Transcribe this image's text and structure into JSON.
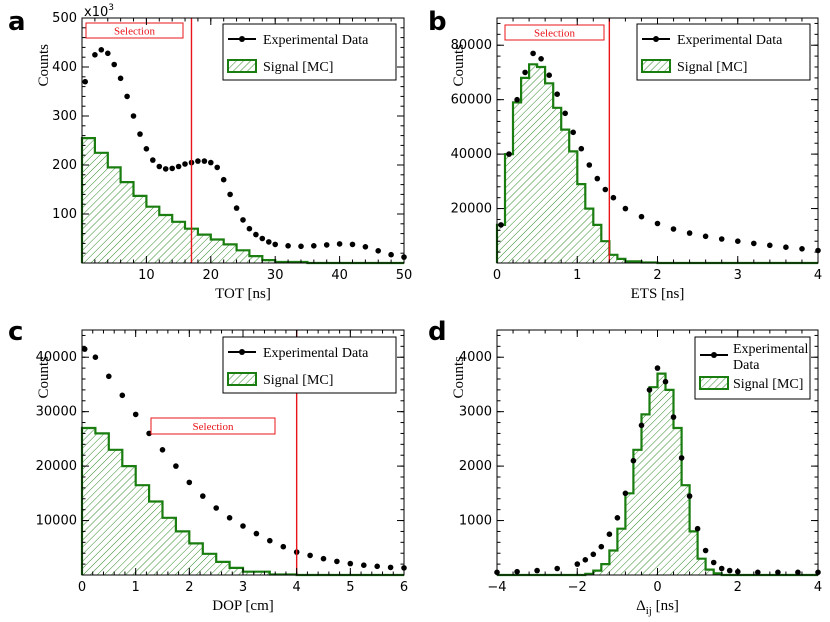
{
  "colors": {
    "data": "#000000",
    "mc": "#1a7d10",
    "selection": "#e8141a"
  },
  "chart_data": [
    {
      "panel": "a",
      "type": "scatter+histogram",
      "xlabel": "TOT [ns]",
      "ylabel": "Counts",
      "xlim": [
        0,
        50
      ],
      "ylim": [
        0,
        500
      ],
      "xticks": [
        10,
        20,
        30,
        40,
        50
      ],
      "xtick_labels": [
        "10",
        "20",
        "30",
        "40",
        "50"
      ],
      "yticks": [
        100,
        200,
        300,
        400,
        500
      ],
      "ytick_labels": [
        "100",
        "200",
        "300",
        "400",
        "500"
      ],
      "y_multiplier": "x10",
      "y_multiplier_exp": "3",
      "legend": {
        "data": "Experimental Data",
        "mc": "Signal [MC]"
      },
      "selection": {
        "label": "Selection",
        "x": 17,
        "from": 0,
        "to": 17
      },
      "series": [
        {
          "name": "Experimental Data",
          "x": [
            0.5,
            2,
            3,
            4,
            5,
            6,
            7,
            8,
            9,
            10,
            11,
            12,
            13,
            14,
            15,
            16,
            17,
            18,
            19,
            20,
            21,
            22,
            23,
            24,
            25,
            26,
            27,
            28,
            29,
            30,
            32,
            34,
            36,
            38,
            40,
            42,
            44,
            46,
            48,
            50
          ],
          "y": [
            370,
            425,
            435,
            428,
            405,
            377,
            340,
            300,
            263,
            233,
            210,
            197,
            192,
            193,
            197,
            202,
            205,
            208,
            208,
            205,
            195,
            170,
            140,
            112,
            88,
            70,
            58,
            50,
            43,
            38,
            35,
            34,
            35,
            37,
            39,
            38,
            33,
            25,
            17,
            12
          ]
        },
        {
          "name": "Signal [MC]",
          "x": [
            0,
            2,
            4,
            6,
            8,
            10,
            12,
            14,
            16,
            18,
            20,
            22,
            24,
            26,
            28,
            30,
            35,
            40,
            50
          ],
          "y": [
            255,
            225,
            195,
            165,
            137,
            115,
            98,
            84,
            70,
            58,
            48,
            38,
            26,
            14,
            6,
            2,
            0,
            0,
            0
          ]
        }
      ]
    },
    {
      "panel": "b",
      "type": "scatter+histogram",
      "xlabel": "ETS [ns]",
      "ylabel": "Counts",
      "xlim": [
        0,
        4
      ],
      "ylim": [
        0,
        90000
      ],
      "xticks": [
        0,
        1,
        2,
        3,
        4
      ],
      "xtick_labels": [
        "0",
        "1",
        "2",
        "3",
        "4"
      ],
      "yticks": [
        20000,
        40000,
        60000,
        80000
      ],
      "ytick_labels": [
        "20000",
        "40000",
        "60000",
        "80000"
      ],
      "legend": {
        "data": "Experimental Data",
        "mc": "Signal [MC]"
      },
      "selection": {
        "label": "Selection",
        "x": 1.4,
        "from": 0,
        "to": 1.4
      },
      "series": [
        {
          "name": "Experimental Data",
          "x": [
            0.05,
            0.15,
            0.25,
            0.35,
            0.45,
            0.55,
            0.65,
            0.75,
            0.85,
            0.95,
            1.05,
            1.15,
            1.25,
            1.35,
            1.45,
            1.6,
            1.8,
            2.0,
            2.2,
            2.4,
            2.6,
            2.8,
            3.0,
            3.2,
            3.4,
            3.6,
            3.8,
            4.0
          ],
          "y": [
            14000,
            40000,
            60000,
            70000,
            77000,
            75000,
            69000,
            62000,
            55000,
            48000,
            42000,
            36000,
            31000,
            27000,
            24000,
            20000,
            17000,
            14500,
            12500,
            11000,
            9800,
            8800,
            8000,
            7200,
            6500,
            5800,
            5200,
            4600
          ]
        },
        {
          "name": "Signal [MC]",
          "x": [
            0,
            0.1,
            0.2,
            0.3,
            0.4,
            0.5,
            0.6,
            0.7,
            0.8,
            0.9,
            1.0,
            1.1,
            1.2,
            1.3,
            1.4,
            1.5,
            1.6,
            1.8,
            2.0,
            4.0
          ],
          "y": [
            14000,
            40000,
            59000,
            68000,
            73000,
            72000,
            66000,
            57000,
            49000,
            41000,
            29000,
            20000,
            14000,
            8000,
            3000,
            1500,
            600,
            200,
            0,
            0
          ]
        }
      ]
    },
    {
      "panel": "c",
      "type": "scatter+histogram",
      "xlabel": "DOP [cm]",
      "ylabel": "Counts",
      "xlim": [
        0,
        6
      ],
      "ylim": [
        0,
        45000
      ],
      "xticks": [
        0,
        1,
        2,
        3,
        4,
        5,
        6
      ],
      "xtick_labels": [
        "0",
        "1",
        "2",
        "3",
        "4",
        "5",
        "6"
      ],
      "yticks": [
        10000,
        20000,
        30000,
        40000
      ],
      "ytick_labels": [
        "10000",
        "20000",
        "30000",
        "40000"
      ],
      "legend": {
        "data": "Experimental Data",
        "mc": "Signal [MC]"
      },
      "selection": {
        "label": "Selection",
        "x": 4,
        "from": 0,
        "to": 4
      },
      "series": [
        {
          "name": "Experimental Data",
          "x": [
            0.05,
            0.25,
            0.5,
            0.75,
            1.0,
            1.25,
            1.5,
            1.75,
            2.0,
            2.25,
            2.5,
            2.75,
            3.0,
            3.25,
            3.5,
            3.75,
            4.0,
            4.25,
            4.5,
            4.75,
            5.0,
            5.25,
            5.5,
            5.75,
            6.0
          ],
          "y": [
            41500,
            40000,
            36500,
            33000,
            29500,
            26000,
            23000,
            20000,
            17000,
            14500,
            12300,
            10500,
            9000,
            7600,
            6300,
            5200,
            4200,
            3600,
            3000,
            2500,
            2100,
            1800,
            1600,
            1400,
            1300
          ]
        },
        {
          "name": "Signal [MC]",
          "x": [
            0,
            0.25,
            0.5,
            0.75,
            1.0,
            1.25,
            1.5,
            1.75,
            2.0,
            2.25,
            2.5,
            2.75,
            3.0,
            3.5,
            4.0,
            6.0
          ],
          "y": [
            27000,
            26000,
            23000,
            20000,
            16500,
            13500,
            10500,
            8000,
            5800,
            3900,
            2400,
            1300,
            600,
            100,
            0,
            0
          ]
        }
      ]
    },
    {
      "panel": "d",
      "type": "scatter+histogram",
      "xlabel": "Δ",
      "xlabel_sub": "ij",
      "xlabel_unit": " [ns]",
      "ylabel": "Counts",
      "xlim": [
        -4,
        4
      ],
      "ylim": [
        0,
        4500
      ],
      "xticks": [
        -4,
        -2,
        0,
        2,
        4
      ],
      "xtick_labels": [
        "−4",
        "−2",
        "0",
        "2",
        "4"
      ],
      "yticks": [
        1000,
        2000,
        3000,
        4000
      ],
      "ytick_labels": [
        "1000",
        "2000",
        "3000",
        "4000"
      ],
      "legend": {
        "data_line1": "Experimental",
        "data_line2": "Data",
        "mc": "Signal [MC]"
      },
      "series": [
        {
          "name": "Experimental Data",
          "x": [
            -4,
            -3.5,
            -3,
            -2.5,
            -2,
            -1.8,
            -1.6,
            -1.4,
            -1.2,
            -1.0,
            -0.8,
            -0.6,
            -0.4,
            -0.2,
            0,
            0.2,
            0.4,
            0.6,
            0.8,
            1.0,
            1.2,
            1.4,
            1.6,
            1.8,
            2.0,
            2.5,
            3.0,
            3.5,
            4.0
          ],
          "y": [
            50,
            60,
            80,
            120,
            200,
            280,
            380,
            520,
            750,
            1050,
            1500,
            2100,
            2750,
            3400,
            3800,
            3550,
            2900,
            2150,
            1450,
            850,
            450,
            230,
            120,
            80,
            60,
            50,
            50,
            50,
            50
          ]
        },
        {
          "name": "Signal [MC]",
          "x": [
            -4,
            -2,
            -1.8,
            -1.6,
            -1.4,
            -1.2,
            -1.0,
            -0.8,
            -0.6,
            -0.4,
            -0.2,
            0,
            0.2,
            0.4,
            0.6,
            0.8,
            1.0,
            1.2,
            1.4,
            1.6,
            2.0,
            4.0
          ],
          "y": [
            0,
            0,
            20,
            80,
            200,
            450,
            850,
            1500,
            2300,
            2950,
            3450,
            3700,
            3400,
            2700,
            1650,
            800,
            300,
            100,
            30,
            0,
            0,
            0
          ]
        }
      ]
    }
  ]
}
